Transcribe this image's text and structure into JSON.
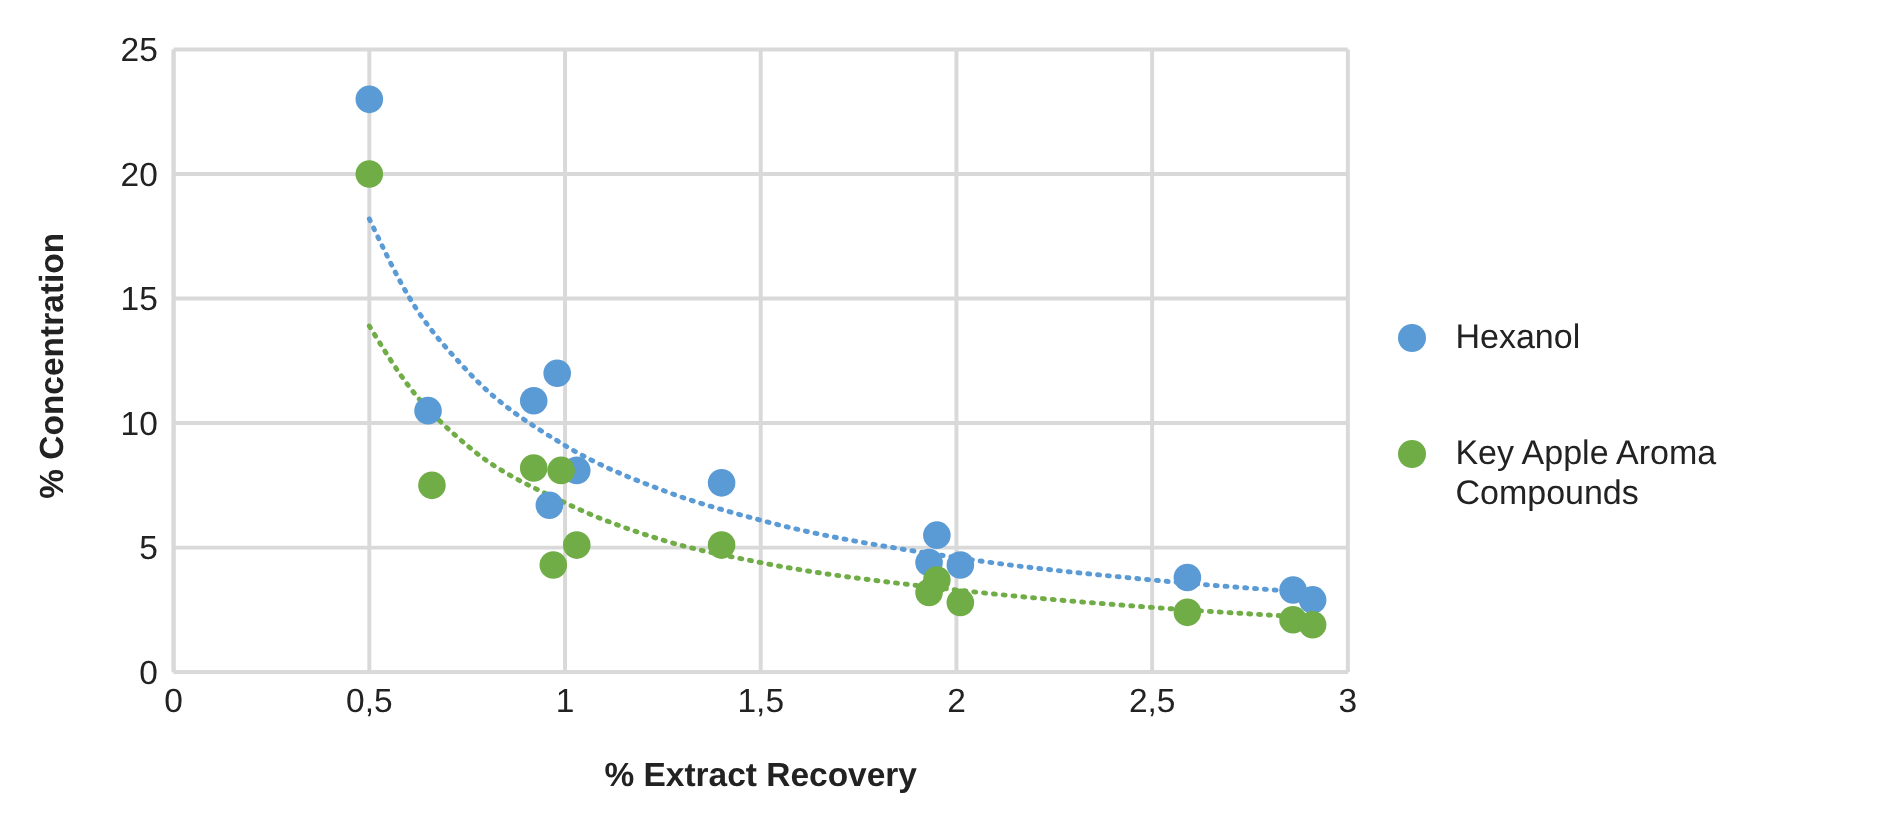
{
  "chart_data": {
    "type": "scatter",
    "xlabel": "% Extract Recovery",
    "ylabel": "%  Concentration",
    "xlim": [
      0,
      3
    ],
    "ylim": [
      0,
      25
    ],
    "xticks": [
      0,
      {
        "value": 0.5,
        "label": "0,5"
      },
      1,
      {
        "value": 1.5,
        "label": "1,5"
      },
      2,
      {
        "value": 2.5,
        "label": "2,5"
      },
      3
    ],
    "yticks": [
      0,
      5,
      10,
      15,
      20,
      25
    ],
    "grid": true,
    "legend": "right",
    "marker": "circle",
    "series": [
      {
        "name": "Hexanol",
        "color": "#5b9bd5",
        "x": [
          0.5,
          0.65,
          0.92,
          0.98,
          0.96,
          1.03,
          1.4,
          1.93,
          1.95,
          2.01,
          2.59,
          2.86,
          2.91
        ],
        "values": [
          23,
          10.5,
          10.9,
          12,
          6.7,
          8.1,
          7.6,
          4.4,
          5.5,
          4.3,
          3.8,
          3.3,
          2.9
        ]
      },
      {
        "name": "Key Apple Aroma Compounds",
        "color": "#70ad47",
        "x": [
          0.5,
          0.66,
          0.92,
          0.99,
          0.97,
          1.03,
          1.4,
          1.93,
          1.95,
          2.01,
          2.59,
          2.86,
          2.91
        ],
        "values": [
          20,
          7.5,
          8.2,
          8.1,
          4.3,
          5.1,
          5.1,
          3.2,
          3.7,
          2.8,
          2.4,
          2.1,
          1.9
        ]
      },
      {
        "type": "line",
        "line_style": "dotted",
        "marker": "none",
        "color": "#5b9bd5",
        "x": [
          0.5,
          0.6,
          0.75,
          1,
          1.25,
          1.5,
          2,
          2.5,
          2.9
        ],
        "values": [
          18.2,
          15.1,
          12.1,
          9.1,
          7.3,
          6.1,
          4.6,
          3.7,
          3.2
        ]
      },
      {
        "type": "line",
        "line_style": "dotted",
        "marker": "none",
        "color": "#70ad47",
        "x": [
          0.5,
          0.6,
          0.75,
          1,
          1.25,
          1.5,
          2,
          2.5,
          2.9
        ],
        "values": [
          13.9,
          11.5,
          9.1,
          6.8,
          5.3,
          4.4,
          3.3,
          2.6,
          2.2
        ]
      }
    ]
  }
}
